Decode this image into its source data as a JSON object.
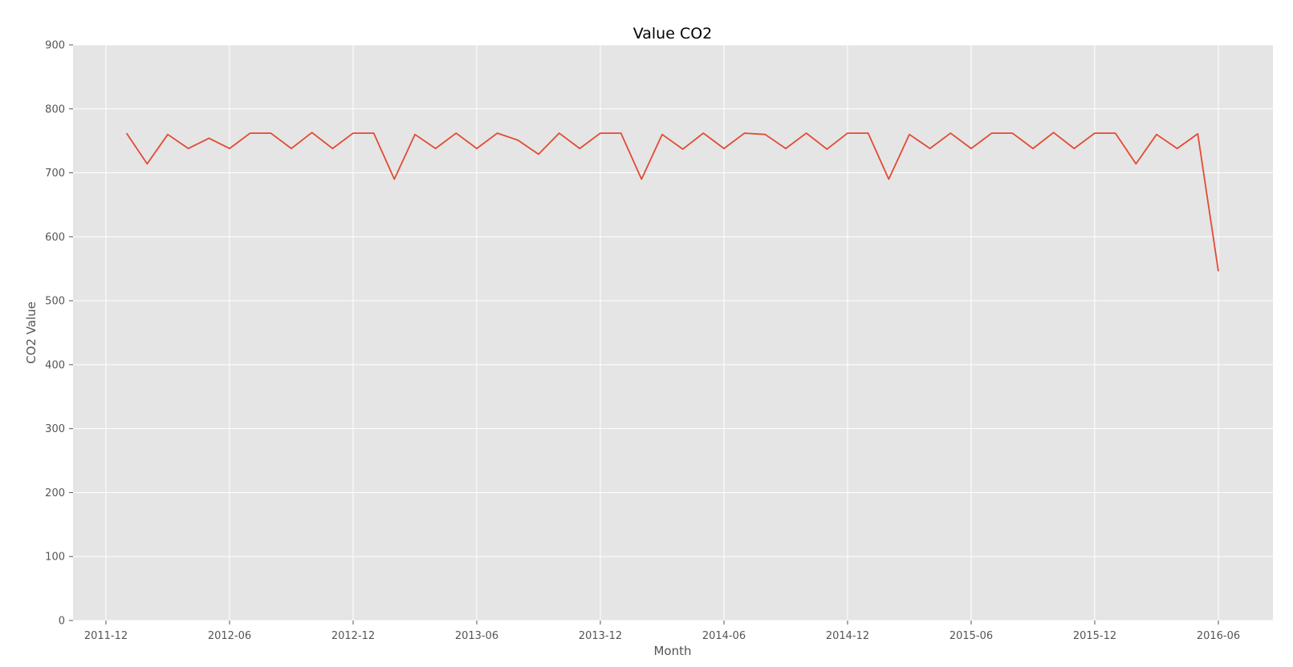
{
  "chart_data": {
    "type": "line",
    "title": "Value CO2",
    "xlabel": "Month",
    "ylabel": "CO2 Value",
    "ylim": [
      0,
      900
    ],
    "y_ticks": [
      0,
      100,
      200,
      300,
      400,
      500,
      600,
      700,
      800,
      900
    ],
    "x_ticks": [
      "2011-12",
      "2012-06",
      "2012-12",
      "2013-06",
      "2013-12",
      "2014-06",
      "2014-12",
      "2015-06",
      "2015-12",
      "2016-06"
    ],
    "grid": true,
    "legend": "none",
    "colors": {
      "line": "#e24a33",
      "plot_bg": "#e5e5e5",
      "grid": "#ffffff"
    },
    "x": [
      "2012-01",
      "2012-02",
      "2012-03",
      "2012-04",
      "2012-05",
      "2012-06",
      "2012-07",
      "2012-08",
      "2012-09",
      "2012-10",
      "2012-11",
      "2012-12",
      "2013-01",
      "2013-02",
      "2013-03",
      "2013-04",
      "2013-05",
      "2013-06",
      "2013-07",
      "2013-08",
      "2013-09",
      "2013-10",
      "2013-11",
      "2013-12",
      "2014-01",
      "2014-02",
      "2014-03",
      "2014-04",
      "2014-05",
      "2014-06",
      "2014-07",
      "2014-08",
      "2014-09",
      "2014-10",
      "2014-11",
      "2014-12",
      "2015-01",
      "2015-02",
      "2015-03",
      "2015-04",
      "2015-05",
      "2015-06",
      "2015-07",
      "2015-08",
      "2015-09",
      "2015-10",
      "2015-11",
      "2015-12",
      "2016-01",
      "2016-02",
      "2016-03",
      "2016-04",
      "2016-05",
      "2016-06"
    ],
    "series": [
      {
        "values": [
          762,
          714,
          760,
          738,
          754,
          738,
          762,
          762,
          738,
          763,
          738,
          762,
          762,
          690,
          760,
          738,
          762,
          738,
          762,
          751,
          729,
          762,
          738,
          762,
          762,
          690,
          760,
          737,
          762,
          738,
          762,
          760,
          738,
          762,
          737,
          762,
          762,
          690,
          760,
          738,
          762,
          738,
          762,
          762,
          738,
          763,
          738,
          762,
          762,
          714,
          760,
          738,
          761,
          546
        ]
      }
    ]
  }
}
